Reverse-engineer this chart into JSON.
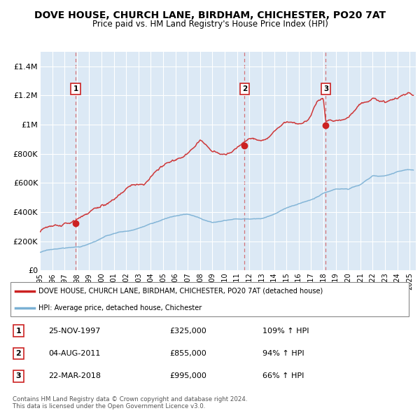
{
  "title": "DOVE HOUSE, CHURCH LANE, BIRDHAM, CHICHESTER, PO20 7AT",
  "subtitle": "Price paid vs. HM Land Registry's House Price Index (HPI)",
  "plot_bg": "#dce9f5",
  "ylim": [
    0,
    1500000
  ],
  "yticks": [
    0,
    200000,
    400000,
    600000,
    800000,
    1000000,
    1200000,
    1400000
  ],
  "ytick_labels": [
    "£0",
    "£200K",
    "£400K",
    "£600K",
    "£800K",
    "£1M",
    "£1.2M",
    "£1.4M"
  ],
  "sales": [
    {
      "date": "25-NOV-1997",
      "price": 325000,
      "year": 1997.9,
      "label": "1",
      "pct": "109%",
      "dir": "↑"
    },
    {
      "date": "04-AUG-2011",
      "price": 855000,
      "year": 2011.6,
      "label": "2",
      "pct": "94%",
      "dir": "↑"
    },
    {
      "date": "22-MAR-2018",
      "price": 995000,
      "year": 2018.2,
      "label": "3",
      "pct": "66%",
      "dir": "↑"
    }
  ],
  "legend_line1": "DOVE HOUSE, CHURCH LANE, BIRDHAM, CHICHESTER, PO20 7AT (detached house)",
  "legend_line2": "HPI: Average price, detached house, Chichester",
  "footer": "Contains HM Land Registry data © Crown copyright and database right 2024.\nThis data is licensed under the Open Government Licence v3.0.",
  "red_color": "#cc2222",
  "blue_color": "#7ab0d4",
  "xmin": 1995,
  "xmax": 2025.5
}
